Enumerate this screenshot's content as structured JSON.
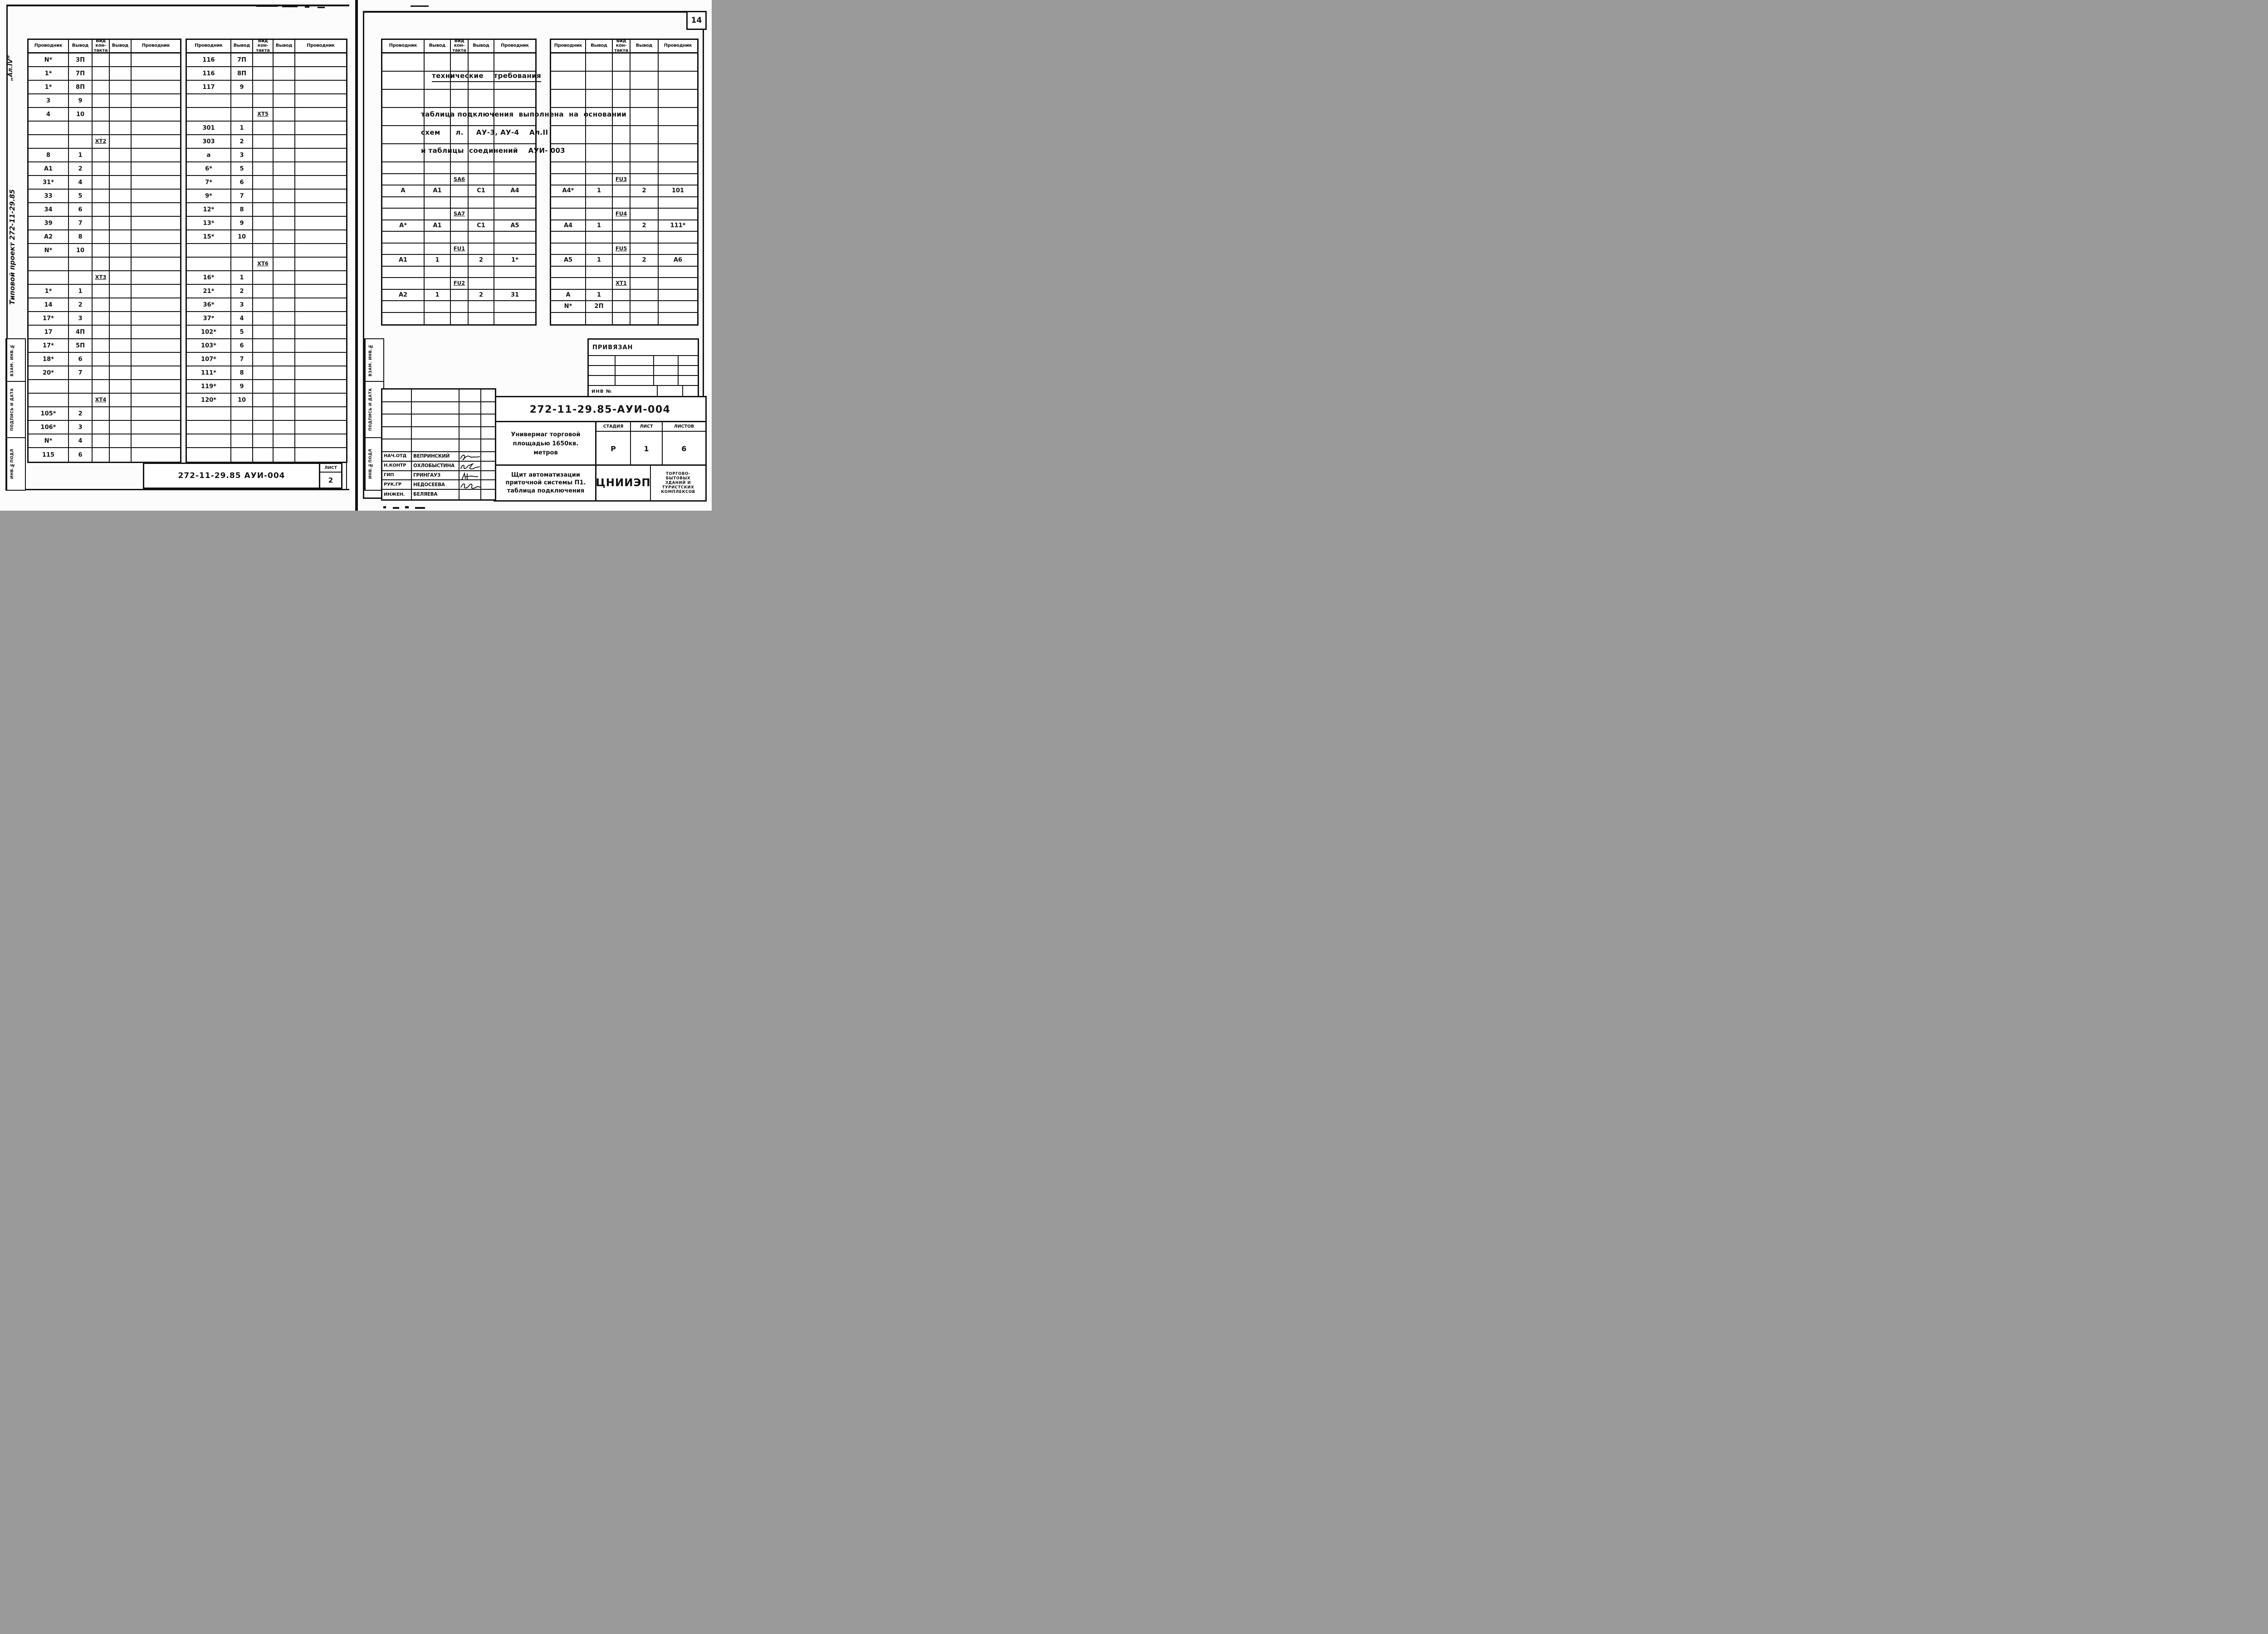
{
  "left_page": {
    "margin_album": "„Ал.IV”",
    "margin_project": "Типовой проект 272-11-29.85",
    "stamp_labels": [
      "ВЗАМ. ИНВ.№",
      "ПОДПИСЬ И ДАТА",
      "ИНВ.№ПОДЛ"
    ],
    "header": [
      "Проводник",
      "Вывод",
      "Вид\nкон-\nтакта",
      "Вывод",
      "Проводник"
    ],
    "group_a_rows": [
      [
        "N*",
        "3П",
        "",
        "",
        ""
      ],
      [
        "1*",
        "7П",
        "",
        "",
        ""
      ],
      [
        "1*",
        "8П",
        "",
        "",
        ""
      ],
      [
        "3",
        "9",
        "",
        "",
        ""
      ],
      [
        "4",
        "10",
        "",
        "",
        ""
      ],
      [
        "",
        "",
        "",
        "",
        ""
      ],
      [
        "",
        "",
        "XT2",
        "",
        ""
      ],
      [
        "8",
        "1",
        "",
        "",
        ""
      ],
      [
        "А1",
        "2",
        "",
        "",
        ""
      ],
      [
        "31*",
        "4",
        "",
        "",
        ""
      ],
      [
        "33",
        "5",
        "",
        "",
        ""
      ],
      [
        "34",
        "6",
        "",
        "",
        ""
      ],
      [
        "39",
        "7",
        "",
        "",
        ""
      ],
      [
        "А2",
        "8",
        "",
        "",
        ""
      ],
      [
        "N*",
        "10",
        "",
        "",
        ""
      ],
      [
        "",
        "",
        "",
        "",
        ""
      ],
      [
        "",
        "",
        "XT3",
        "",
        ""
      ],
      [
        "1*",
        "1",
        "",
        "",
        ""
      ],
      [
        "14",
        "2",
        "",
        "",
        ""
      ],
      [
        "17*",
        "3",
        "",
        "",
        ""
      ],
      [
        "17",
        "4П",
        "",
        "",
        ""
      ],
      [
        "17*",
        "5П",
        "",
        "",
        ""
      ],
      [
        "18*",
        "6",
        "",
        "",
        ""
      ],
      [
        "20*",
        "7",
        "",
        "",
        ""
      ],
      [
        "",
        "",
        "",
        "",
        ""
      ],
      [
        "",
        "",
        "XT4",
        "",
        ""
      ],
      [
        "105*",
        "2",
        "",
        "",
        ""
      ],
      [
        "106*",
        "3",
        "",
        "",
        ""
      ],
      [
        "N*",
        "4",
        "",
        "",
        ""
      ],
      [
        "115",
        "6",
        "",
        "",
        ""
      ]
    ],
    "group_b_rows": [
      [
        "116",
        "7П",
        "",
        "",
        ""
      ],
      [
        "116",
        "8П",
        "",
        "",
        ""
      ],
      [
        "117",
        "9",
        "",
        "",
        ""
      ],
      [
        "",
        "",
        "",
        "",
        ""
      ],
      [
        "",
        "",
        "XT5",
        "",
        ""
      ],
      [
        "301",
        "1",
        "",
        "",
        ""
      ],
      [
        "303",
        "2",
        "",
        "",
        ""
      ],
      [
        "а",
        "3",
        "",
        "",
        ""
      ],
      [
        "6*",
        "5",
        "",
        "",
        ""
      ],
      [
        "7*",
        "6",
        "",
        "",
        ""
      ],
      [
        "9*",
        "7",
        "",
        "",
        ""
      ],
      [
        "12*",
        "8",
        "",
        "",
        ""
      ],
      [
        "13*",
        "9",
        "",
        "",
        ""
      ],
      [
        "15*",
        "10",
        "",
        "",
        ""
      ],
      [
        "",
        "",
        "",
        "",
        ""
      ],
      [
        "",
        "",
        "XT6",
        "",
        ""
      ],
      [
        "16*",
        "1",
        "",
        "",
        ""
      ],
      [
        "21*",
        "2",
        "",
        "",
        ""
      ],
      [
        "36*",
        "3",
        "",
        "",
        ""
      ],
      [
        "37*",
        "4",
        "",
        "",
        ""
      ],
      [
        "102*",
        "5",
        "",
        "",
        ""
      ],
      [
        "103*",
        "6",
        "",
        "",
        ""
      ],
      [
        "107*",
        "7",
        "",
        "",
        ""
      ],
      [
        "111*",
        "8",
        "",
        "",
        ""
      ],
      [
        "119*",
        "9",
        "",
        "",
        ""
      ],
      [
        "120*",
        "10",
        "",
        "",
        ""
      ],
      [
        "",
        "",
        "",
        "",
        ""
      ],
      [
        "",
        "",
        "",
        "",
        ""
      ],
      [
        "",
        "",
        "",
        "",
        ""
      ],
      [
        "",
        "",
        "",
        "",
        ""
      ]
    ],
    "footer": {
      "doc": "272-11-29.85   АУИ-004",
      "sheet_label": "ЛИСТ",
      "sheet_value": "2"
    }
  },
  "right_page": {
    "page_number": "14",
    "stamp_labels": [
      "ВЗАМ. ИНВ.№",
      "ПОДПИСЬ И ДАТА",
      "ИНВ.№ПОДЛ"
    ],
    "header": [
      "Проводник",
      "Вывод",
      "Вид\nкон-\nтакта",
      "Вывод",
      "Проводник"
    ],
    "tech_lines": [
      "технические    требования",
      "таблица подключения  выполнена  на  основании",
      "схем      л.     АУ-3, АУ-4    Ал.II",
      "и таблицы  соединений    АУИ- 003"
    ],
    "group_c_rows": [
      [
        "",
        "",
        "",
        "",
        ""
      ],
      [
        "",
        "",
        "",
        "",
        ""
      ],
      [
        "",
        "",
        "",
        "",
        ""
      ],
      [
        "",
        "",
        "",
        "",
        ""
      ],
      [
        "",
        "",
        "",
        "",
        ""
      ],
      [
        "",
        "",
        "",
        "",
        ""
      ],
      [
        "",
        "",
        "",
        "",
        ""
      ],
      [
        "",
        "",
        "SA6",
        "",
        ""
      ],
      [
        "А",
        "А1",
        "",
        "С1",
        "А4"
      ],
      [
        "",
        "",
        "",
        "",
        ""
      ],
      [
        "",
        "",
        "SA7",
        "",
        ""
      ],
      [
        "А*",
        "А1",
        "",
        "С1",
        "А5"
      ],
      [
        "",
        "",
        "",
        "",
        ""
      ],
      [
        "",
        "",
        "FU1",
        "",
        ""
      ],
      [
        "А1",
        "1",
        "",
        "2",
        "1*"
      ],
      [
        "",
        "",
        "",
        "",
        ""
      ],
      [
        "",
        "",
        "FU2",
        "",
        ""
      ],
      [
        "А2",
        "1",
        "",
        "2",
        "31"
      ],
      [
        "",
        "",
        "",
        "",
        ""
      ],
      [
        "",
        "",
        "",
        "",
        ""
      ]
    ],
    "group_d_rows": [
      [
        "",
        "",
        "",
        "",
        ""
      ],
      [
        "",
        "",
        "",
        "",
        ""
      ],
      [
        "",
        "",
        "",
        "",
        ""
      ],
      [
        "",
        "",
        "",
        "",
        ""
      ],
      [
        "",
        "",
        "",
        "",
        ""
      ],
      [
        "",
        "",
        "",
        "",
        ""
      ],
      [
        "",
        "",
        "",
        "",
        ""
      ],
      [
        "",
        "",
        "FU3",
        "",
        ""
      ],
      [
        "А4*",
        "1",
        "",
        "2",
        "101"
      ],
      [
        "",
        "",
        "",
        "",
        ""
      ],
      [
        "",
        "",
        "FU4",
        "",
        ""
      ],
      [
        "А4",
        "1",
        "",
        "2",
        "111*"
      ],
      [
        "",
        "",
        "",
        "",
        ""
      ],
      [
        "",
        "",
        "FU5",
        "",
        ""
      ],
      [
        "А5",
        "1",
        "",
        "2",
        "А6"
      ],
      [
        "",
        "",
        "",
        "",
        ""
      ],
      [
        "",
        "",
        "XT1",
        "",
        ""
      ],
      [
        "А",
        "1",
        "",
        "",
        ""
      ],
      [
        "N*",
        "2П",
        "",
        "",
        ""
      ],
      [
        "",
        "",
        "",
        "",
        ""
      ]
    ],
    "privyazan": {
      "title": "ПРИВЯЗАН",
      "inv_label": "ИНВ №"
    },
    "title_block": {
      "doc_number": "272-11-29.85-АУИ-004",
      "object_lines": [
        "Универмаг торговой",
        "площадью 1650кв.",
        "метров"
      ],
      "sheet_title_lines": [
        "Щит автоматизации",
        "приточной системы П1.",
        "таблица подключения"
      ],
      "stage_label": "СТАДИЯ",
      "sheet_label": "ЛИСТ",
      "sheets_label": "ЛИСТОВ",
      "stage": "Р",
      "sheet": "1",
      "sheets": "6",
      "org": "ЦНИИЭП",
      "org_lines": [
        "ТОРГОВО-",
        "БЫТОВЫХ",
        "ЗДАНИЙ И",
        "ТУРИСТСКИХ",
        "КОМПЛЕКСОВ"
      ],
      "staff_rows": [
        [
          "",
          "",
          "",
          ""
        ],
        [
          "",
          "",
          "",
          ""
        ],
        [
          "",
          "",
          "",
          ""
        ],
        [
          "",
          "",
          "",
          ""
        ],
        [
          "",
          "",
          "",
          ""
        ],
        [
          "НАЧ.ОТД",
          "ВЕПРИНСКИЙ",
          "",
          ""
        ],
        [
          "Н.КОНТР",
          "ОХЛОБЫСТИНА",
          "",
          ""
        ],
        [
          "ГИП",
          "ГРИНГАУЗ",
          "",
          ""
        ],
        [
          "РУК.ГР",
          "НЕДОСЕЕВА",
          "",
          ""
        ],
        [
          "ИНЖЕН.",
          "БЕЛЯЕВА",
          "",
          ""
        ]
      ]
    }
  }
}
